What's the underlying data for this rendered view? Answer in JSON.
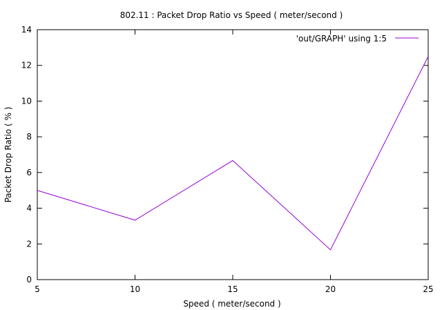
{
  "chart_data": {
    "type": "line",
    "title": "802.11 : Packet Drop Ratio vs Speed ( meter/second )",
    "xlabel": "Speed ( meter/second )",
    "ylabel": "Packet Drop Ratio ( % )",
    "xlim": [
      5,
      25
    ],
    "ylim": [
      0,
      14
    ],
    "xticks": [
      "5",
      "10",
      "15",
      "20",
      "25"
    ],
    "yticks": [
      "0",
      "2",
      "4",
      "6",
      "8",
      "10",
      "12",
      "14"
    ],
    "grid": false,
    "legend_position": "top-right",
    "series": [
      {
        "name": "'out/GRAPH' using 1:5",
        "color": "#9400d3",
        "x": [
          5,
          10,
          15,
          20,
          25
        ],
        "y": [
          5.0,
          3.33,
          6.67,
          1.67,
          12.5
        ]
      }
    ]
  }
}
